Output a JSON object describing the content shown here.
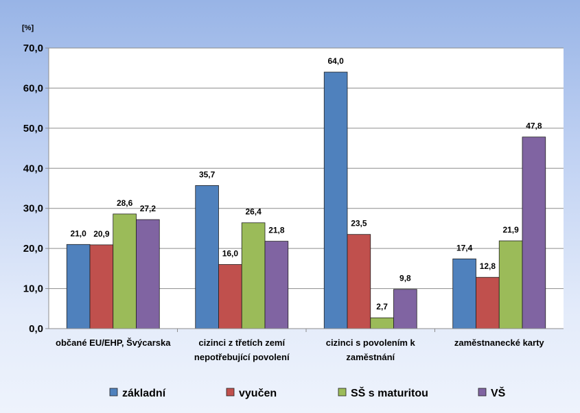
{
  "chart_data": {
    "type": "bar",
    "unit_label": "[%]",
    "title": "",
    "xlabel": "",
    "ylabel": "",
    "ylim": [
      0,
      70
    ],
    "yticks": [
      "0,0",
      "10,0",
      "20,0",
      "30,0",
      "40,0",
      "50,0",
      "60,0",
      "70,0"
    ],
    "grid": true,
    "legend_position": "bottom",
    "categories": [
      [
        "občané EU/EHP, Švýcarska"
      ],
      [
        "cizinci  z třetích zemí",
        "nepotřebující povolení"
      ],
      [
        "cizinci s povolením k",
        "zaměstnání"
      ],
      [
        "zaměstnanecké karty"
      ]
    ],
    "series": [
      {
        "name": "základní",
        "color": "#4f81bd",
        "values": [
          21.0,
          35.7,
          64.0,
          17.4
        ],
        "labels": [
          "21,0",
          "35,7",
          "64,0",
          "17,4"
        ]
      },
      {
        "name": "vyučen",
        "color": "#c0504d",
        "values": [
          20.9,
          16.0,
          23.5,
          12.8
        ],
        "labels": [
          "20,9",
          "16,0",
          "23,5",
          "12,8"
        ]
      },
      {
        "name": "SŠ s maturitou",
        "color": "#9bbb59",
        "values": [
          28.6,
          26.4,
          2.7,
          21.9
        ],
        "labels": [
          "28,6",
          "26,4",
          "2,7",
          "21,9"
        ]
      },
      {
        "name": "VŠ",
        "color": "#8064a2",
        "values": [
          27.2,
          21.8,
          9.8,
          47.8
        ],
        "labels": [
          "27,2",
          "21,8",
          "9,8",
          "47,8"
        ]
      }
    ]
  }
}
